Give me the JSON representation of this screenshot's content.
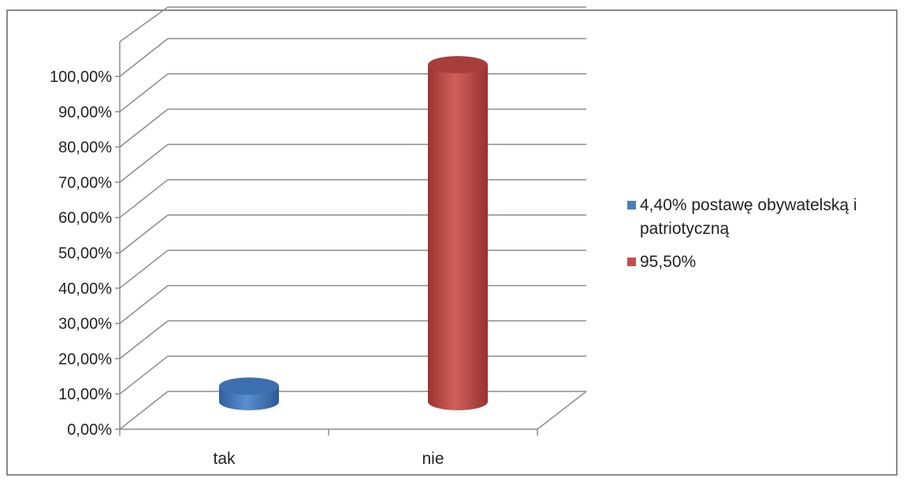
{
  "chart_data": {
    "type": "bar",
    "variant": "3d-cylinder",
    "categories": [
      "tak",
      "nie"
    ],
    "series": [
      {
        "name": "4,40% postawę obywatelską i patriotyczną",
        "values": [
          4.4,
          0
        ],
        "color": "#4a7ebb"
      },
      {
        "name": "95,50%",
        "values": [
          0,
          95.5
        ],
        "color": "#c0504d"
      }
    ],
    "y_ticks": [
      "0,00%",
      "10,00%",
      "20,00%",
      "30,00%",
      "40,00%",
      "50,00%",
      "60,00%",
      "70,00%",
      "80,00%",
      "90,00%",
      "100,00%"
    ],
    "ylim": [
      0,
      100
    ],
    "grid": true,
    "legend_position": "right"
  }
}
